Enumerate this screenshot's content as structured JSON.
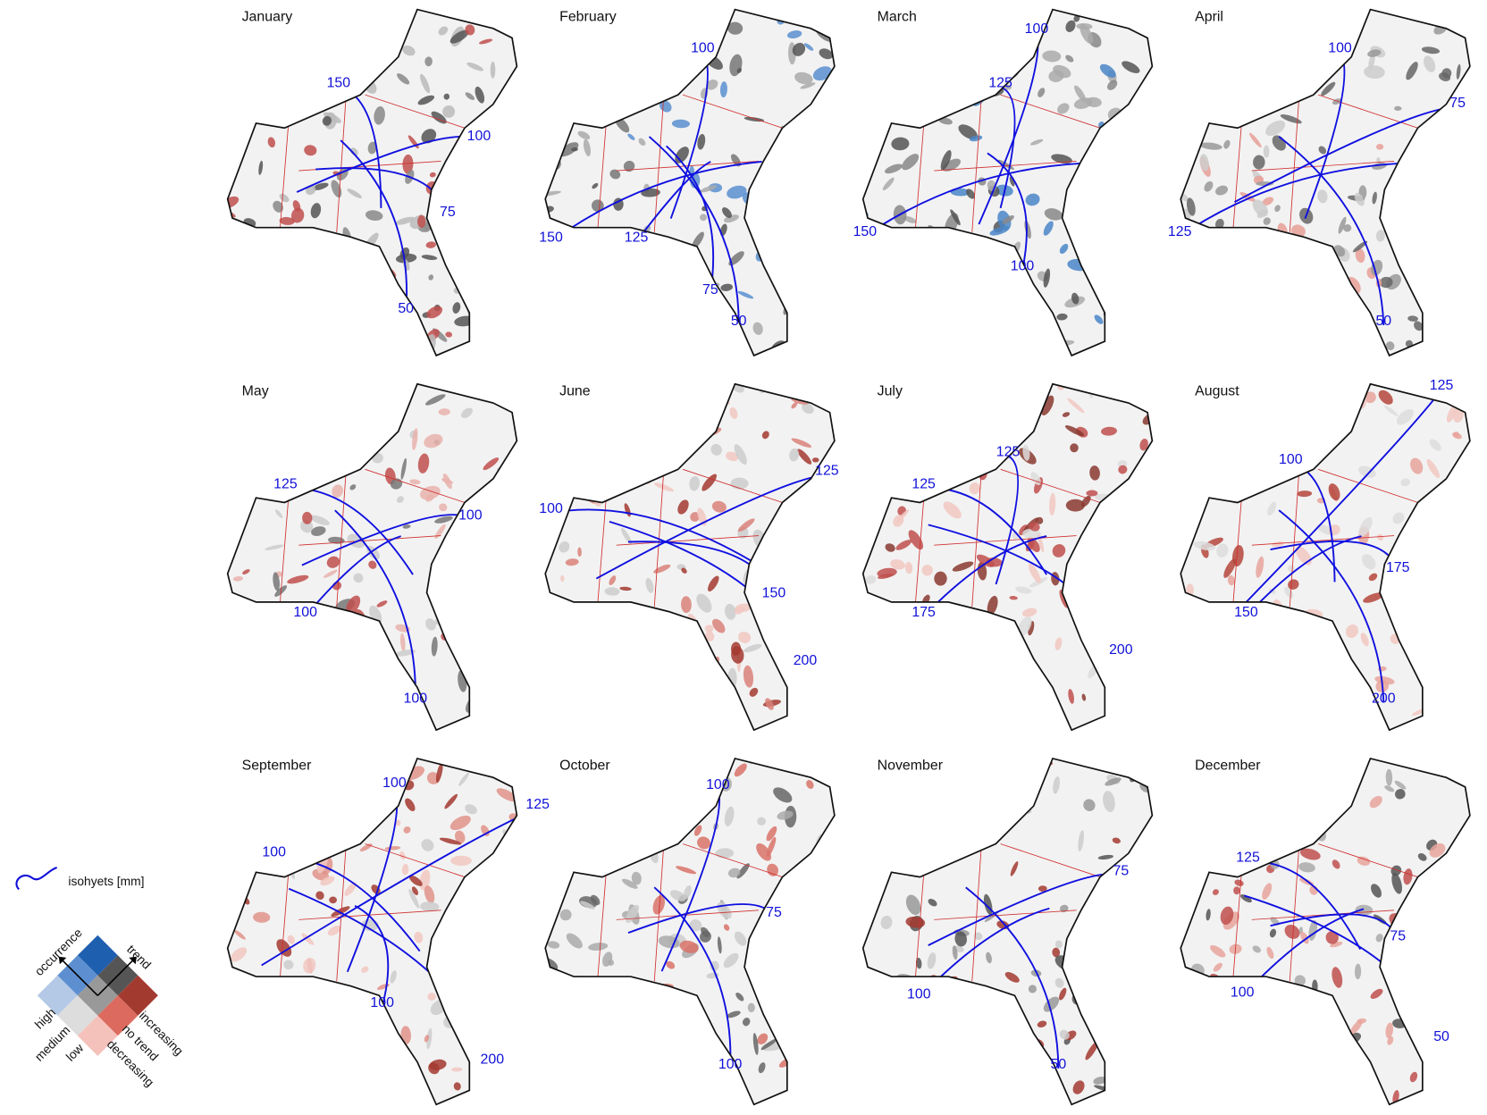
{
  "panels": [
    {
      "month": "January",
      "isohyet_labels": [
        150,
        100,
        75,
        50
      ]
    },
    {
      "month": "February",
      "isohyet_labels": [
        100,
        150,
        125,
        75,
        50
      ]
    },
    {
      "month": "March",
      "isohyet_labels": [
        100,
        125,
        150,
        100
      ]
    },
    {
      "month": "April",
      "isohyet_labels": [
        100,
        75,
        125,
        50
      ]
    },
    {
      "month": "May",
      "isohyet_labels": [
        125,
        100,
        100,
        100
      ]
    },
    {
      "month": "June",
      "isohyet_labels": [
        125,
        100,
        150,
        200
      ]
    },
    {
      "month": "July",
      "isohyet_labels": [
        125,
        125,
        175,
        200
      ]
    },
    {
      "month": "August",
      "isohyet_labels": [
        125,
        100,
        175,
        150,
        200
      ]
    },
    {
      "month": "September",
      "isohyet_labels": [
        100,
        125,
        100,
        100,
        200
      ]
    },
    {
      "month": "October",
      "isohyet_labels": [
        100,
        75,
        100
      ]
    },
    {
      "month": "November",
      "isohyet_labels": [
        75,
        100,
        50
      ]
    },
    {
      "month": "December",
      "isohyet_labels": [
        125,
        75,
        100,
        50
      ]
    }
  ],
  "legend": {
    "isohyets": "isohyets [mm]",
    "occurrence_axis": "occurrence",
    "trend_axis": "trend",
    "occurrence_levels": [
      "high",
      "medium",
      "low"
    ],
    "trend_levels": [
      "increasing",
      "no trend",
      "decreasing"
    ]
  }
}
